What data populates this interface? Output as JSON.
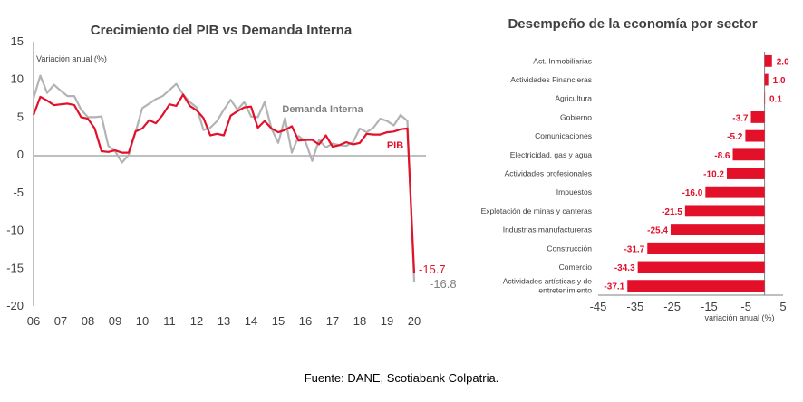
{
  "colors": {
    "accent": "#e3102a",
    "gray": "#b3b3b3",
    "text": "#404040"
  },
  "source": "Fuente: DANE, Scotiabank Colpatria.",
  "chart_data": [
    {
      "type": "line",
      "title": "Crecimiento del PIB vs Demanda Interna",
      "ylabel": "Variación anual (%)",
      "ylim": [
        -20,
        15
      ],
      "yticks": [
        "15",
        "10",
        "5",
        "0",
        "-5",
        "-10",
        "-15",
        "-20"
      ],
      "xticks": [
        "06",
        "07",
        "08",
        "09",
        "10",
        "11",
        "12",
        "13",
        "14",
        "15",
        "16",
        "17",
        "18",
        "19",
        "20"
      ],
      "xlim": [
        2006,
        2020.1
      ],
      "grid": false,
      "series": [
        {
          "name": "Demanda Interna",
          "color": "#b3b3b3",
          "end_label": "-16.8",
          "x": [
            2006.0,
            2006.25,
            2006.5,
            2006.75,
            2007.0,
            2007.25,
            2007.5,
            2007.75,
            2008.0,
            2008.25,
            2008.5,
            2008.75,
            2009.0,
            2009.25,
            2009.5,
            2009.75,
            2010.0,
            2010.25,
            2010.5,
            2010.75,
            2011.0,
            2011.25,
            2011.5,
            2011.75,
            2012.0,
            2012.25,
            2012.5,
            2012.75,
            2013.0,
            2013.25,
            2013.5,
            2013.75,
            2014.0,
            2014.25,
            2014.5,
            2014.75,
            2015.0,
            2015.25,
            2015.5,
            2015.75,
            2016.0,
            2016.25,
            2016.5,
            2016.75,
            2017.0,
            2017.25,
            2017.5,
            2017.75,
            2018.0,
            2018.25,
            2018.5,
            2018.75,
            2019.0,
            2019.25,
            2019.5,
            2019.75,
            2020.0
          ],
          "values": [
            7.5,
            10.5,
            8.2,
            9.3,
            8.5,
            7.8,
            7.8,
            6.0,
            5.0,
            5.0,
            5.1,
            1.2,
            0.5,
            -1.0,
            0.0,
            3.0,
            6.2,
            6.8,
            7.4,
            7.8,
            8.6,
            9.4,
            8.0,
            7.0,
            6.3,
            3.3,
            3.6,
            4.5,
            6.0,
            7.3,
            6.0,
            7.0,
            5.1,
            5.0,
            7.0,
            3.5,
            1.6,
            4.9,
            0.3,
            2.5,
            1.8,
            -0.8,
            2.0,
            1.0,
            1.5,
            1.3,
            1.2,
            1.7,
            3.5,
            3.0,
            3.6,
            4.8,
            4.5,
            3.9,
            5.3,
            4.5,
            -16.8
          ]
        },
        {
          "name": "PIB",
          "color": "#e3102a",
          "end_label": "-15.7",
          "x": [
            2006.0,
            2006.25,
            2006.5,
            2006.75,
            2007.0,
            2007.25,
            2007.5,
            2007.75,
            2008.0,
            2008.25,
            2008.5,
            2008.75,
            2009.0,
            2009.25,
            2009.5,
            2009.75,
            2010.0,
            2010.25,
            2010.5,
            2010.75,
            2011.0,
            2011.25,
            2011.5,
            2011.75,
            2012.0,
            2012.25,
            2012.5,
            2012.75,
            2013.0,
            2013.25,
            2013.5,
            2013.75,
            2014.0,
            2014.25,
            2014.5,
            2014.75,
            2015.0,
            2015.25,
            2015.5,
            2015.75,
            2016.0,
            2016.25,
            2016.5,
            2016.75,
            2017.0,
            2017.25,
            2017.5,
            2017.75,
            2018.0,
            2018.25,
            2018.5,
            2018.75,
            2019.0,
            2019.25,
            2019.5,
            2019.75,
            2020.0
          ],
          "values": [
            5.3,
            7.7,
            7.2,
            6.6,
            6.7,
            6.8,
            6.6,
            5.0,
            4.8,
            3.5,
            0.5,
            0.4,
            0.6,
            0.3,
            0.3,
            3.1,
            3.5,
            4.6,
            4.2,
            5.3,
            6.7,
            6.5,
            8.0,
            6.5,
            5.9,
            4.9,
            2.6,
            2.8,
            2.6,
            5.2,
            5.8,
            6.3,
            6.4,
            3.6,
            4.5,
            3.5,
            3.0,
            3.3,
            3.8,
            1.9,
            2.0,
            2.0,
            1.4,
            2.6,
            1.1,
            1.3,
            1.7,
            1.4,
            1.6,
            2.8,
            2.7,
            2.7,
            3.0,
            3.1,
            3.4,
            3.5,
            -15.7
          ]
        }
      ]
    },
    {
      "type": "bar",
      "orientation": "horizontal",
      "title": "Desempeño de la economía por sector",
      "xlabel": "variación anual (%)",
      "xlim": [
        -45,
        5
      ],
      "xticks": [
        "-45",
        "-35",
        "-25",
        "-15",
        "-5",
        "5"
      ],
      "grid": false,
      "categories": [
        "Act. Inmobiliarias",
        "Actividades Financieras",
        "Agricultura",
        "Gobierno",
        "Comunicaciones",
        "Electricidad, gas y agua",
        "Actividades profesionales",
        "Impuestos",
        "Explotación de minas y canteras",
        "Industrias manufactureras",
        "Construcción",
        "Comercio",
        "Actividades artísticas y de entretenimiento"
      ],
      "values": [
        2.0,
        1.0,
        0.1,
        -3.7,
        -5.2,
        -8.6,
        -10.2,
        -16.0,
        -21.5,
        -25.4,
        -31.7,
        -34.3,
        -37.1
      ],
      "labels": [
        "2.0",
        "1.0",
        "0.1",
        "-3.7",
        "-5.2",
        "-8.6",
        "-10.2",
        "-16.0",
        "-21.5",
        "-25.4",
        "-31.7",
        "-34.3",
        "-37.1"
      ]
    }
  ]
}
